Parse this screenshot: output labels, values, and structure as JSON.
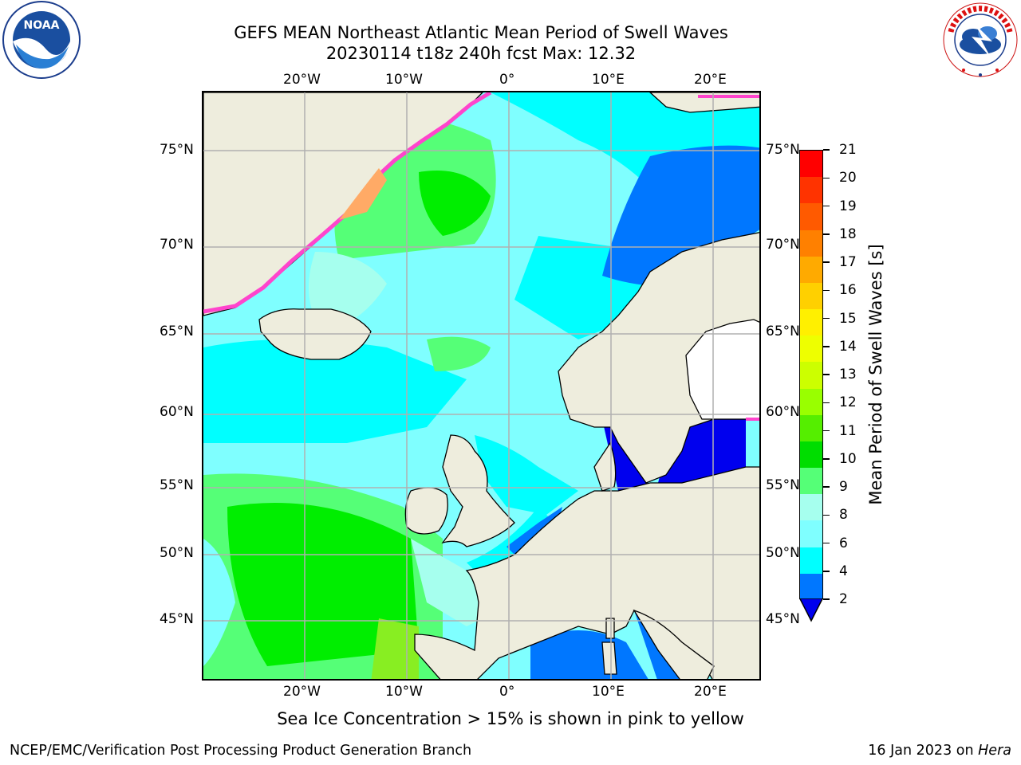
{
  "title": {
    "line1": "GEFS MEAN Northeast Atlantic Mean Period of Swell Waves",
    "line2": "20230114 t18z 240h fcst   Max: 12.32"
  },
  "logos": {
    "left": {
      "icon": "noaa-logo",
      "text": "NOAA"
    },
    "right": {
      "icon": "national-weather-service-logo",
      "text": "NATIONAL WEATHER SERVICE"
    }
  },
  "map": {
    "longitude_labels": [
      "20°W",
      "10°W",
      "0°",
      "10°E",
      "20°E"
    ],
    "latitude_labels_left": [
      "75°N",
      "70°N",
      "65°N",
      "60°N",
      "55°N",
      "50°N",
      "45°N"
    ],
    "latitude_labels_right": [
      "75°N",
      "70°N",
      "65°N",
      "60°N",
      "55°N",
      "50°N",
      "45°N"
    ],
    "colors": {
      "land": "#eeeddd",
      "ocean_6_8": "#7fffff",
      "ocean_4_6": "#00ffff",
      "ocean_8_9": "#a6ffee",
      "ocean_9_10": "#55ff77",
      "ocean_10_11": "#00ee00",
      "ocean_2_4": "#0077ff",
      "ocean_lt_2": "#0000ee",
      "grid": "#b0b0b0",
      "ice_edge": "#ff44cc",
      "ice_inner": "#ffaa66"
    }
  },
  "colorbar": {
    "title": "Mean Period of Swell Waves [s]",
    "tick_labels": [
      "21",
      "20",
      "19",
      "18",
      "17",
      "16",
      "15",
      "14",
      "13",
      "12",
      "11",
      "10",
      "9",
      "8",
      "6",
      "4",
      "2"
    ],
    "colors": [
      "#ff0000",
      "#ff3300",
      "#ff5a00",
      "#ff8000",
      "#ffaa00",
      "#ffd000",
      "#fff000",
      "#eeff00",
      "#ccff00",
      "#99ff00",
      "#55ee00",
      "#00dd00",
      "#55ff77",
      "#a6ffee",
      "#7fffff",
      "#00ffff",
      "#0077ff"
    ],
    "extend_color": "#0000ee"
  },
  "caption": "Sea Ice Concentration > 15% is shown in pink to yellow",
  "footer": {
    "left": "NCEP/EMC/Verification Post Processing Product Generation Branch",
    "right_date": "16 Jan 2023 on ",
    "right_host": "Hera"
  }
}
